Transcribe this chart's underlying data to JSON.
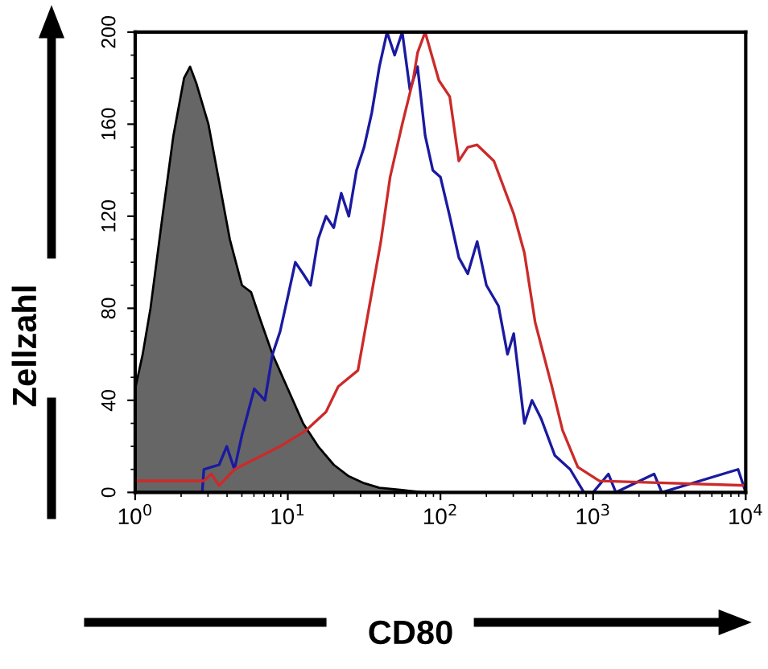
{
  "chart_data": {
    "type": "line",
    "xlabel": "CD80",
    "ylabel": "Zellzahl",
    "log": "x",
    "grid": false,
    "marker": "none",
    "line_style": "solid",
    "xlim": [
      1,
      10000
    ],
    "ylim": [
      0,
      200
    ],
    "xticks": [
      {
        "value": 1,
        "label": "10$^{0}$"
      },
      {
        "value": 10,
        "label": "10$^{1}$"
      },
      {
        "value": 100,
        "label": "10$^{2}$"
      },
      {
        "value": 1000,
        "label": "10$^{3}$"
      },
      {
        "value": 10000,
        "label": "10$^{4}$"
      }
    ],
    "yticks": [
      0,
      40,
      80,
      120,
      160,
      200
    ],
    "series": [
      {
        "type": "area",
        "color": "#666666",
        "x": [
          1,
          1.12,
          1.26,
          1.51,
          1.78,
          2.09,
          2.29,
          2.51,
          3.02,
          3.55,
          4.17,
          5.01,
          5.75,
          6.61,
          7.94,
          10,
          12.6,
          15.8,
          20,
          25.1,
          31.6,
          39.8,
          56.2,
          79.4,
          10000
        ],
        "values": [
          45,
          60,
          80,
          120,
          155,
          180,
          185,
          178,
          160,
          135,
          110,
          90,
          87,
          75,
          60,
          45,
          30,
          20,
          12,
          7,
          4,
          2,
          1,
          0,
          0
        ]
      },
      {
        "color": "#1a1aa0",
        "x": [
          1,
          2.75,
          2.82,
          3.55,
          3.98,
          4.47,
          5.01,
          5.25,
          6.03,
          7.08,
          7.94,
          8.91,
          10,
          11.2,
          12.6,
          14.1,
          15.8,
          17.8,
          20,
          22.4,
          25.1,
          28.2,
          31.6,
          35.5,
          39.8,
          44.7,
          50.1,
          56.2,
          63.1,
          70.8,
          79.4,
          89.1,
          100,
          115,
          132,
          151,
          174,
          200,
          240,
          275,
          302,
          355,
          398,
          457,
          562,
          708,
          871,
          1000,
          1260,
          1410,
          2510,
          2820,
          8910,
          10000
        ],
        "values": [
          0,
          0,
          10,
          12,
          20,
          10,
          25,
          30,
          45,
          40,
          60,
          70,
          85,
          100,
          95,
          90,
          110,
          120,
          115,
          130,
          120,
          140,
          150,
          165,
          185,
          200,
          190,
          200,
          175,
          185,
          155,
          140,
          137,
          120,
          102,
          95,
          109,
          90,
          81,
          60,
          69,
          30,
          40,
          32,
          16,
          10,
          0,
          0,
          8,
          0,
          8,
          0,
          10,
          0
        ]
      },
      {
        "color": "#cc2a2a",
        "x": [
          1,
          2.82,
          3.16,
          3.55,
          4.47,
          6.31,
          8.91,
          13.2,
          17.8,
          21.4,
          28.8,
          40.7,
          46.8,
          56.2,
          66.1,
          70.8,
          79.4,
          97.7,
          115,
          132,
          151,
          174,
          224,
          302,
          355,
          417,
          537,
          631,
          794,
          1100,
          10000
        ],
        "values": [
          5,
          5,
          8,
          3,
          10,
          15,
          20,
          27,
          35,
          46,
          53,
          109,
          137,
          160,
          179,
          191,
          200,
          179,
          172,
          144,
          150,
          151,
          144,
          121,
          104,
          74,
          46,
          27,
          11,
          5,
          3
        ]
      }
    ]
  }
}
